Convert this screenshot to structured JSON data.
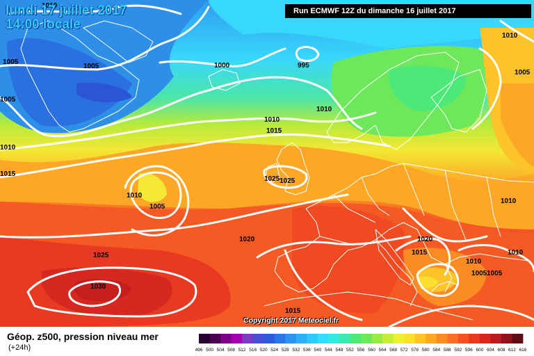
{
  "header": {
    "date_line": "lundi 17 juillet 2017",
    "time_line": "14:00 locale",
    "run_info": "Run ECMWF 12Z du dimanche 16 juillet 2017"
  },
  "footer": {
    "parameter": "Géop. z500, pression niveau mer",
    "lead_time": "(+24h)",
    "copyright": "Copyright 2017 Meteociel.fr"
  },
  "legend": {
    "ticks": [
      "496",
      "500",
      "504",
      "508",
      "512",
      "516",
      "520",
      "524",
      "528",
      "532",
      "536",
      "540",
      "544",
      "548",
      "552",
      "556",
      "560",
      "564",
      "568",
      "572",
      "576",
      "580",
      "584",
      "588",
      "592",
      "596",
      "600",
      "604",
      "608",
      "612",
      "616"
    ],
    "colors": [
      "#2a0030",
      "#4b0052",
      "#7d0085",
      "#a400b0",
      "#7a3cc0",
      "#4a4fd6",
      "#2e5bdc",
      "#2a76e6",
      "#2d93f0",
      "#2fb0f6",
      "#33c8fa",
      "#36dcfb",
      "#34e8e0",
      "#3ee8b0",
      "#4ce878",
      "#6ee85a",
      "#9aea46",
      "#c6ec3c",
      "#ecef38",
      "#fbe030",
      "#fcc42a",
      "#fca826",
      "#fb8c24",
      "#f97024",
      "#f45224",
      "#e83a22",
      "#d52820",
      "#b81c1e",
      "#8f141a",
      "#5e0e12"
    ]
  },
  "isobars": [
    {
      "label": "1010"
    },
    {
      "label": "1005"
    },
    {
      "label": "1005"
    },
    {
      "label": "1000"
    },
    {
      "label": "995"
    },
    {
      "label": "1010"
    },
    {
      "label": "1005"
    },
    {
      "label": "1005"
    },
    {
      "label": "1010"
    },
    {
      "label": "1010"
    },
    {
      "label": "1015"
    },
    {
      "label": "1010"
    },
    {
      "label": "1015"
    },
    {
      "label": "1010"
    },
    {
      "label": "1005"
    },
    {
      "label": "1025"
    },
    {
      "label": "1025"
    },
    {
      "label": "1020"
    },
    {
      "label": "1025"
    },
    {
      "label": "1030"
    },
    {
      "label": "1020"
    },
    {
      "label": "1015"
    },
    {
      "label": "1010"
    },
    {
      "label": "1010"
    },
    {
      "label": "1005"
    },
    {
      "label": "1005"
    },
    {
      "label": "1015"
    }
  ]
}
